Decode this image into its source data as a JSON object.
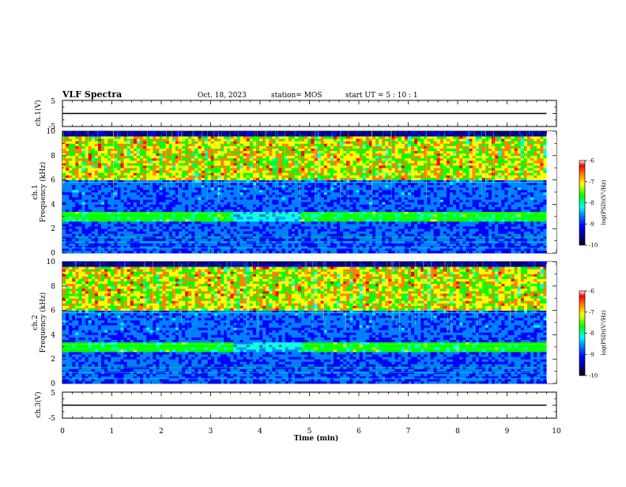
{
  "header": {
    "title": "VLF Spectra",
    "date": "Oct. 18, 2023",
    "station": "station= MOS",
    "start_ut": "start  UT =   5  : 10 : 1"
  },
  "colors": {
    "spectrogram_scale": [
      "#000080",
      "#0000ff",
      "#0080ff",
      "#00ffff",
      "#00ff00",
      "#ffff00",
      "#ff8000",
      "#ff0000",
      "#ffffff"
    ]
  },
  "chart_data": [
    {
      "type": "line",
      "name": "ch1_waveform",
      "ylabel": "ch.1(V)",
      "ylim": [
        -5,
        5
      ],
      "yticks": [
        "5",
        "-5"
      ],
      "xlim": [
        0,
        10
      ],
      "x": [
        0,
        9.8
      ],
      "y": [
        0,
        0
      ]
    },
    {
      "type": "heatmap",
      "name": "ch1_spectrogram",
      "ylabel_line1": "ch.1",
      "ylabel_line2": "Frequency (kHz)",
      "ylim": [
        0,
        10
      ],
      "yticks": [
        "0",
        "2",
        "4",
        "6",
        "8",
        "10"
      ],
      "xlim": [
        0,
        10
      ],
      "data_end_min": 9.8,
      "colorbar": {
        "label": "log(PSD)(V²/Hz)",
        "range": [
          -10,
          -6
        ],
        "ticks": [
          "-10",
          "-9",
          "-8",
          "-7",
          "-6"
        ]
      }
    },
    {
      "type": "heatmap",
      "name": "ch2_spectrogram",
      "ylabel_line1": "ch.2",
      "ylabel_line2": "Frequency (kHz)",
      "ylim": [
        0,
        10
      ],
      "yticks": [
        "0",
        "2",
        "4",
        "6",
        "8",
        "10"
      ],
      "xlim": [
        0,
        10
      ],
      "data_end_min": 9.8,
      "colorbar": {
        "label": "log(PSD)(V²/Hz)",
        "range": [
          -10,
          -6
        ],
        "ticks": [
          "-10",
          "-9",
          "-8",
          "-7",
          "-6"
        ]
      }
    },
    {
      "type": "line",
      "name": "ch3_waveform",
      "ylabel": "ch.3(V)",
      "ylim": [
        -5,
        5
      ],
      "yticks": [
        "5",
        "-5"
      ],
      "xlim": [
        0,
        10
      ],
      "x": [
        0,
        9.8
      ],
      "y": [
        0,
        0
      ]
    }
  ],
  "xaxis": {
    "label": "Time (min)",
    "ticks": [
      "0",
      "1",
      "2",
      "3",
      "4",
      "5",
      "6",
      "7",
      "8",
      "9",
      "10"
    ]
  }
}
